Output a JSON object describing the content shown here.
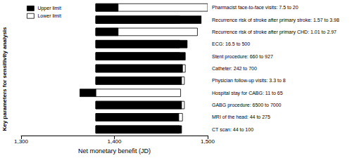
{
  "chart_data": {
    "type": "bar",
    "orientation": "horizontal",
    "x_label": "Net monetary benefit (JD)",
    "y_label": "Key parameters for sensitivity analysis",
    "categories": [
      "Pharmacist face-to-face visits: 7.5 to 20",
      "Recurrence risk of stroke after primary stroke: 1.57 to 3.98",
      "Recurrence risk of stroke after primary CHD: 1.01 to 2.97",
      "ECG: 16.5 to 500",
      "Stent procedure: 660 to 927",
      "Catheter: 242 to 700",
      "Physician follow-up visits: 3.3 to 8",
      "Hospital stay for CABG: 11 to 65",
      "GABG procedure: 6500 to 7000",
      "MRI of the head: 44 to 275",
      "CT scan: 44 to 100"
    ],
    "baseline": 1380,
    "series": [
      {
        "name": "Upper limit",
        "color": "#000000",
        "values": [
          1404,
          1493,
          1404,
          1478,
          1476,
          1473,
          1472,
          1363,
          1472,
          1469,
          1472
        ]
      },
      {
        "name": "Lower limit",
        "color": "#ffffff",
        "values": [
          1500,
          1470,
          1489,
          1470,
          1470,
          1476,
          1475,
          1471,
          1475,
          1473,
          1470
        ]
      }
    ],
    "xlim": [
      1300,
      1500
    ],
    "xticks": [
      {
        "value": 1300,
        "label": "1,300"
      },
      {
        "value": 1400,
        "label": "1,400"
      },
      {
        "value": 1500,
        "label": "1,500"
      }
    ],
    "legend": "upper left",
    "grid": false
  }
}
